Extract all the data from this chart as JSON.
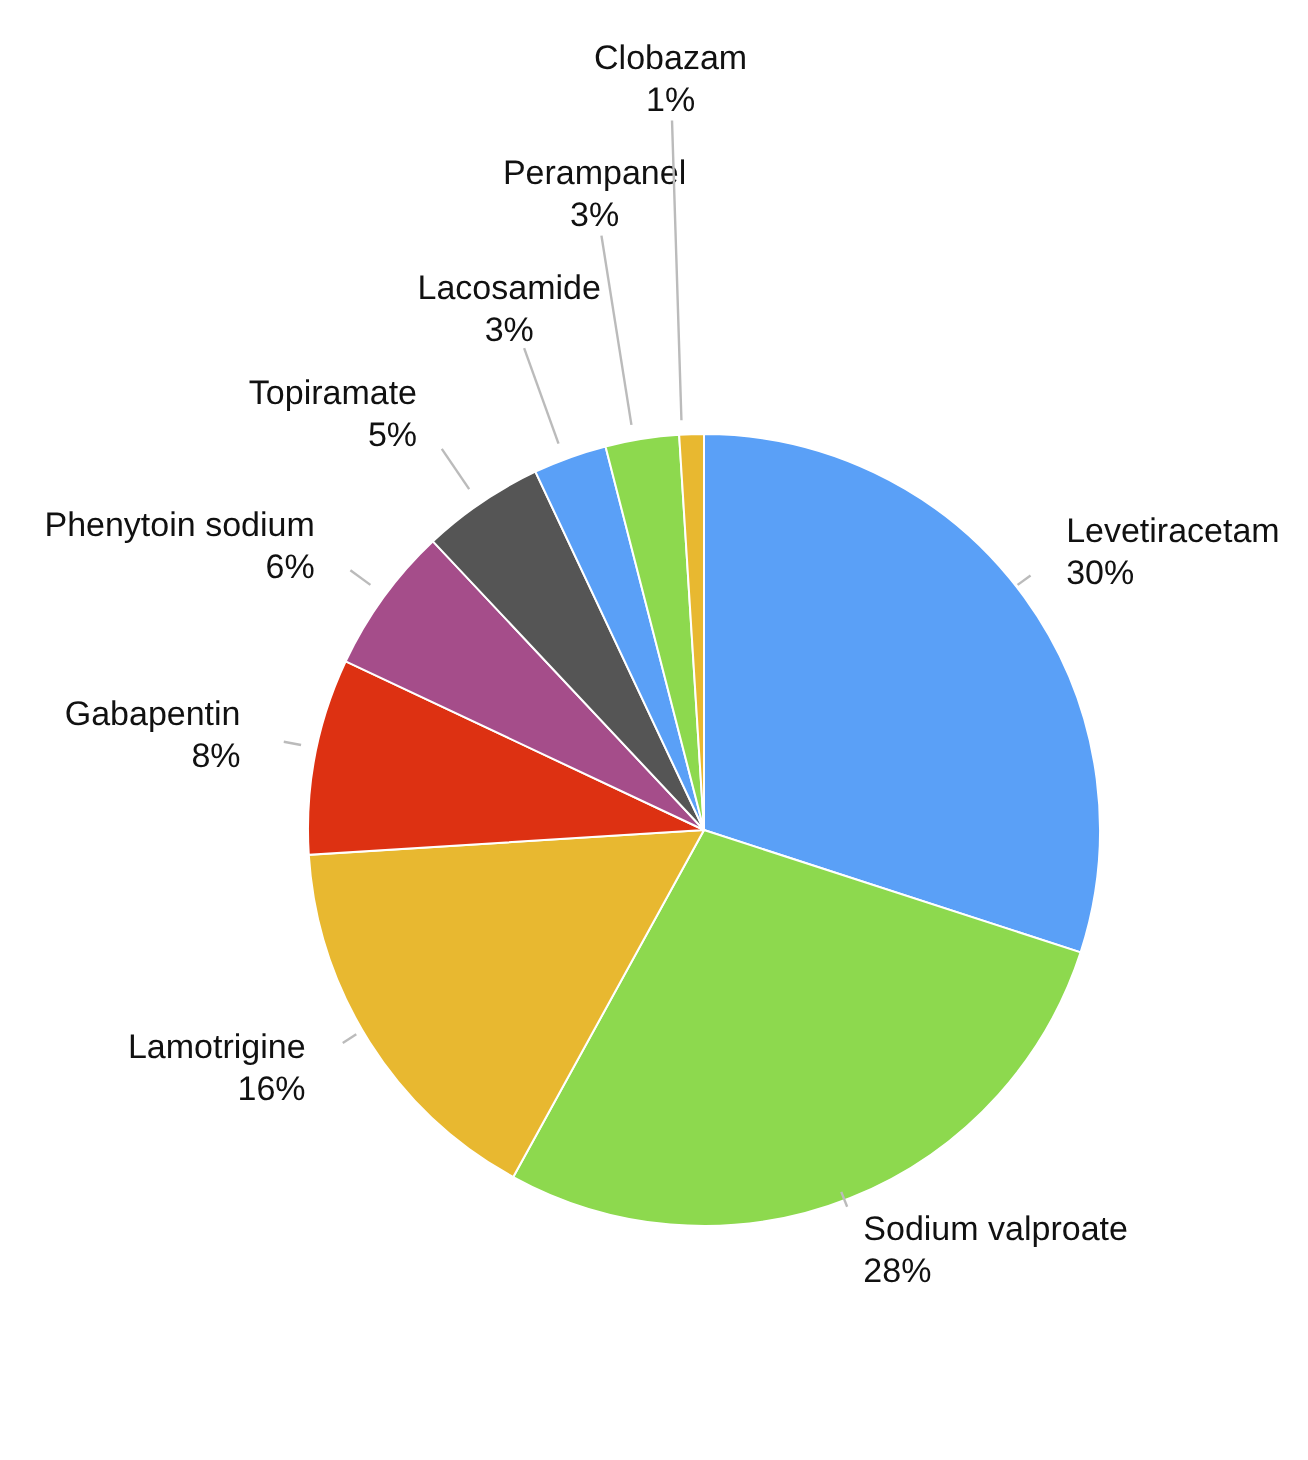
{
  "chart_data": {
    "type": "pie",
    "categories": [
      "Levetiracetam",
      "Sodium valproate",
      "Lamotrigine",
      "Gabapentin",
      "Phenytoin sodium",
      "Topiramate",
      "Lacosamide",
      "Perampanel",
      "Clobazam"
    ],
    "values": [
      30,
      28,
      16,
      8,
      6,
      5,
      3,
      3,
      1
    ],
    "value_labels": [
      "30%",
      "28%",
      "16%",
      "8%",
      "6%",
      "5%",
      "3%",
      "3%",
      "1%"
    ],
    "colors": [
      "#5aa0f7",
      "#8dd94e",
      "#e8b830",
      "#dd3112",
      "#a54d8a",
      "#555555",
      "#5aa0f7",
      "#8dd94e",
      "#e8b830"
    ],
    "legend": false
  }
}
